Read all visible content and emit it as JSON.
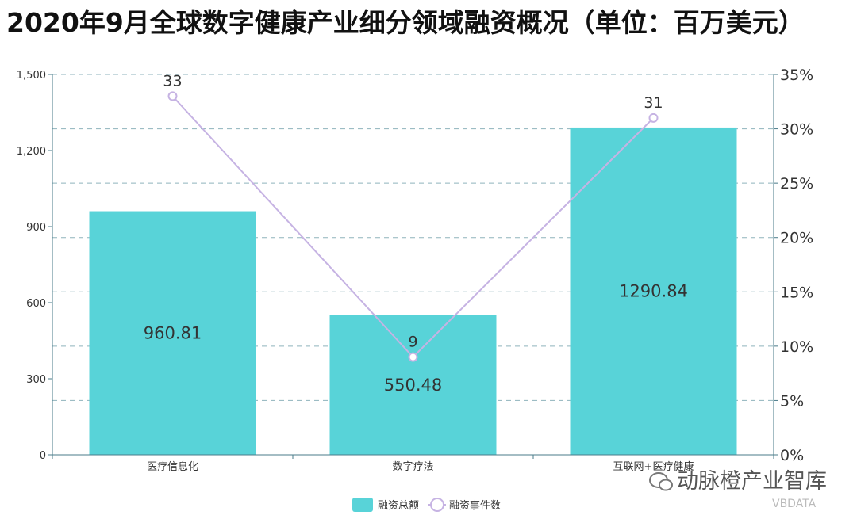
{
  "chart_data": {
    "type": "bar",
    "title": "2020年9月全球数字健康产业细分领域融资概况（单位：百万美元）",
    "categories": [
      "医疗信息化",
      "数字疗法",
      "互联网+医疗健康"
    ],
    "series": [
      {
        "name": "融资总额",
        "type": "bar",
        "axis": "left",
        "values": [
          960.81,
          550.48,
          1290.84
        ],
        "labels": [
          "960.81",
          "550.48",
          "1290.84"
        ],
        "color": "#58d3d8"
      },
      {
        "name": "融资事件数",
        "type": "line",
        "axis": "right",
        "values": [
          33,
          9,
          31
        ],
        "labels": [
          "33",
          "9",
          "31"
        ],
        "color": "#c6b3e3"
      }
    ],
    "y_left": {
      "min": 0,
      "max": 1500,
      "ticks": [
        0,
        300,
        600,
        900,
        1200,
        1500
      ],
      "tick_labels": [
        "0",
        "300",
        "600",
        "900",
        "1,200",
        "1,500"
      ]
    },
    "y_right": {
      "min": 0,
      "max": 35,
      "ticks": [
        0,
        5,
        10,
        15,
        20,
        25,
        30,
        35
      ],
      "tick_labels": [
        "0%",
        "5%",
        "10%",
        "15%",
        "20%",
        "25%",
        "30%",
        "35%"
      ]
    },
    "grid": "right-axis dashed",
    "legend": "bottom-center",
    "axis_color": "#4a7b8a",
    "grid_color": "#8fb3bc"
  },
  "watermark": {
    "text": "动脉橙产业智库",
    "brand": "VBDATA",
    "icon": "wechat-icon"
  }
}
